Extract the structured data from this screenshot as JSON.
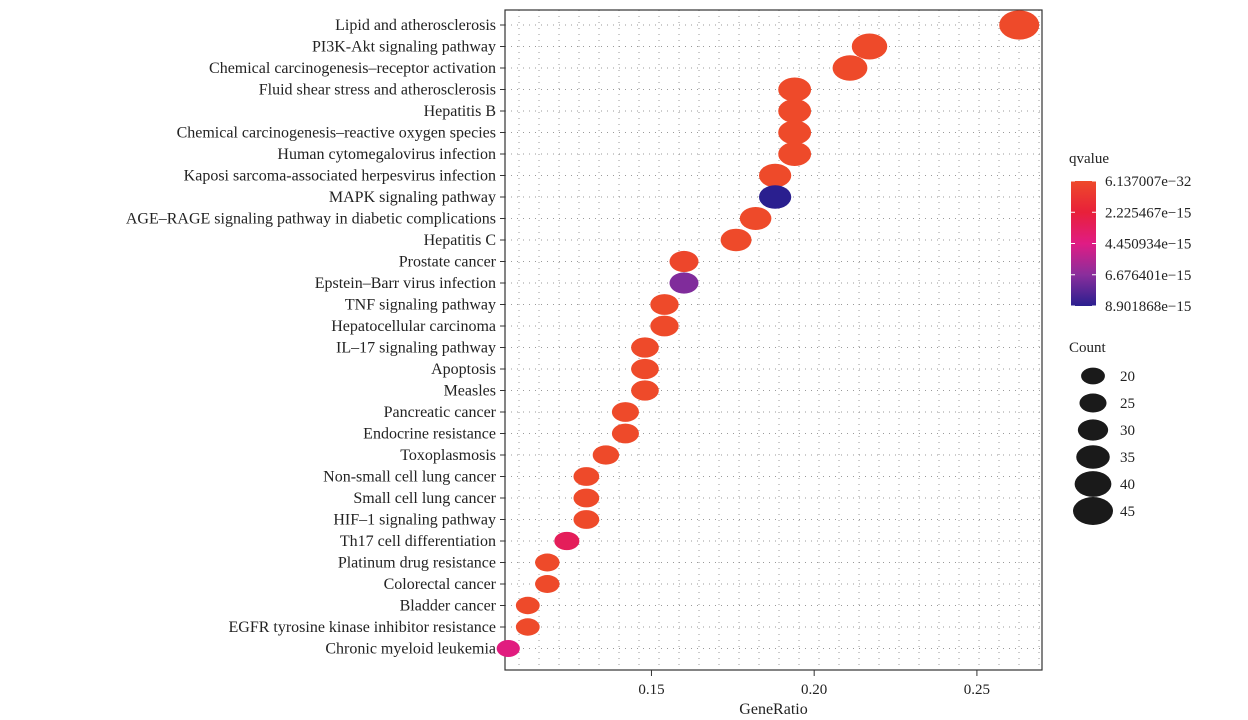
{
  "chart_data": {
    "type": "scatter",
    "xlabel": "GeneRatio",
    "ylabel": "",
    "xlim": [
      0.105,
      0.27
    ],
    "xticks": [
      0.15,
      0.2,
      0.25
    ],
    "xtick_labels": [
      "0.15",
      "0.20",
      "0.25"
    ],
    "grid": "dotted",
    "legend_position": "right",
    "categories": [
      "Lipid and atherosclerosis",
      "PI3K-Akt signaling pathway",
      "Chemical carcinogenesis–receptor activation",
      "Fluid shear stress and atherosclerosis",
      "Hepatitis B",
      "Chemical carcinogenesis–reactive oxygen species",
      "Human cytomegalovirus infection",
      "Kaposi sarcoma-associated herpesvirus infection",
      "MAPK signaling pathway",
      "AGE–RAGE signaling pathway in diabetic complications",
      "Hepatitis C",
      "Prostate cancer",
      "Epstein–Barr virus infection",
      "TNF signaling pathway",
      "Hepatocellular carcinoma",
      "IL–17 signaling pathway",
      "Apoptosis",
      "Measles",
      "Pancreatic cancer",
      "Endocrine resistance",
      "Toxoplasmosis",
      "Non-small cell lung cancer",
      "Small cell lung cancer",
      "HIF–1 signaling pathway",
      "Th17 cell differentiation",
      "Platinum drug resistance",
      "Colorectal cancer",
      "Bladder cancer",
      "EGFR tyrosine kinase inhibitor resistance",
      "Chronic myeloid leukemia"
    ],
    "x": [
      0.263,
      0.217,
      0.211,
      0.194,
      0.194,
      0.194,
      0.194,
      0.188,
      0.188,
      0.182,
      0.176,
      0.16,
      0.16,
      0.154,
      0.154,
      0.148,
      0.148,
      0.148,
      0.142,
      0.142,
      0.136,
      0.13,
      0.13,
      0.13,
      0.124,
      0.118,
      0.118,
      0.112,
      0.112,
      0.106
    ],
    "count": [
      45,
      38,
      37,
      34,
      34,
      34,
      34,
      33,
      33,
      32,
      31,
      28,
      28,
      27,
      27,
      26,
      26,
      26,
      25,
      25,
      24,
      23,
      23,
      23,
      22,
      21,
      21,
      20,
      20,
      19
    ],
    "qvalue": [
      6.2e-32,
      1e-20,
      1e-20,
      1e-20,
      1e-20,
      1e-20,
      1e-20,
      1e-18,
      8.9e-15,
      1e-18,
      1e-18,
      2e-16,
      6.9e-15,
      1e-17,
      1e-17,
      1e-17,
      1e-17,
      1e-17,
      1e-17,
      1e-17,
      1e-17,
      1e-17,
      1e-17,
      1e-17,
      3.2e-15,
      1e-17,
      1e-17,
      1e-17,
      1e-17,
      4.3e-15
    ],
    "color_legend": {
      "title": "qvalue",
      "labels": [
        "6.137007e−32",
        "2.225467e−15",
        "4.450934e−15",
        "6.676401e−15",
        "8.901868e−15"
      ],
      "values": [
        6.137007e-32,
        2.225467e-15,
        4.450934e-15,
        6.676401e-15,
        8.901868e-15
      ],
      "colors": [
        "#ee4a2a",
        "#e8203a",
        "#e01c84",
        "#8a2e9c",
        "#2a1f8f"
      ]
    },
    "size_legend": {
      "title": "Count",
      "values": [
        20,
        25,
        30,
        35,
        40,
        45
      ],
      "labels": [
        "20",
        "25",
        "30",
        "35",
        "40",
        "45"
      ]
    }
  }
}
